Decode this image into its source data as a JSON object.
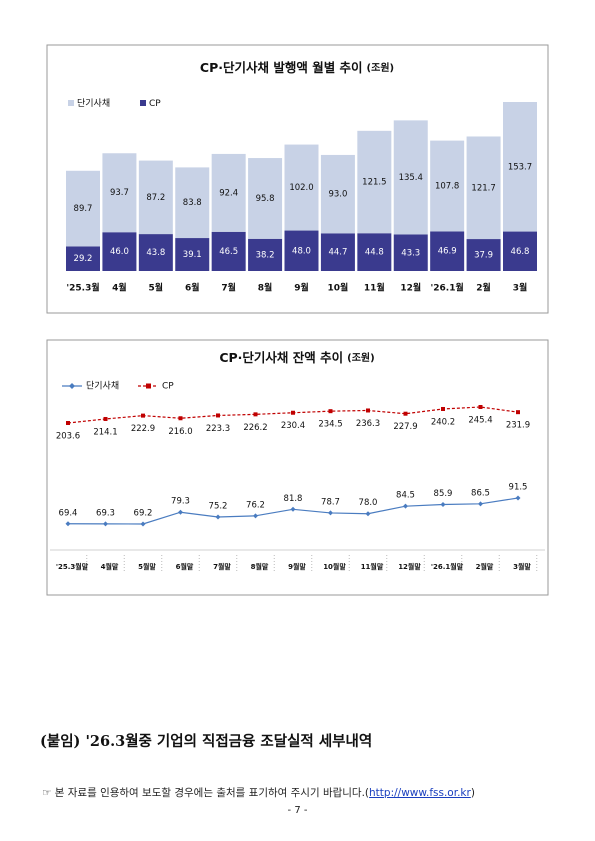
{
  "chart_data": [
    {
      "type": "bar",
      "stacked": true,
      "title": "CP·단기사채 발행액 월별 추이",
      "unit": "(조원)",
      "categories": [
        "'25.3월",
        "4월",
        "5월",
        "6월",
        "7월",
        "8월",
        "9월",
        "10월",
        "11월",
        "12월",
        "'26.1월",
        "2월",
        "3월"
      ],
      "series": [
        {
          "name": "단기사채",
          "color": "#c8d2e6",
          "values": [
            89.7,
            93.7,
            87.2,
            83.8,
            92.4,
            95.8,
            102.0,
            93.0,
            121.5,
            135.4,
            107.8,
            121.7,
            153.7
          ],
          "value_labels": [
            "89.7",
            "93.7",
            "87.2",
            "83.8",
            "92.4",
            "95.8",
            "102.0",
            "93.0",
            "121.5",
            "135.4",
            "107.8",
            "121.7",
            "153.7"
          ]
        },
        {
          "name": "CP",
          "color": "#3a3a8e",
          "values": [
            29.2,
            46.0,
            43.8,
            39.1,
            46.5,
            38.2,
            48.0,
            44.7,
            44.8,
            43.3,
            46.9,
            37.9,
            46.8
          ],
          "value_labels": [
            "29.2",
            "46.0",
            "43.8",
            "39.1",
            "46.5",
            "38.2",
            "48.0",
            "44.7",
            "44.8",
            "43.3",
            "46.9",
            "37.9",
            "46.8"
          ]
        }
      ]
    },
    {
      "type": "line",
      "title": "CP·단기사채 잔액 추이",
      "unit": "(조원)",
      "categories": [
        "'25.3월말",
        "4월말",
        "5월말",
        "6월말",
        "7월말",
        "8월말",
        "9월말",
        "10월말",
        "11월말",
        "12월말",
        "'26.1월말",
        "2월말",
        "3월말"
      ],
      "series": [
        {
          "name": "단기사채",
          "color": "#4a7cc0",
          "values": [
            69.4,
            69.3,
            69.2,
            79.3,
            75.2,
            76.2,
            81.8,
            78.7,
            78.0,
            84.5,
            85.9,
            86.5,
            91.5
          ],
          "value_labels": [
            "69.4",
            "69.3",
            "69.2",
            "79.3",
            "75.2",
            "76.2",
            "81.8",
            "78.7",
            "78.0",
            "84.5",
            "85.9",
            "86.5",
            "91.5"
          ]
        },
        {
          "name": "CP",
          "color": "#c00000",
          "values": [
            203.6,
            214.1,
            222.9,
            216.0,
            223.3,
            226.2,
            230.4,
            234.5,
            236.3,
            227.9,
            240.2,
            245.4,
            231.9
          ],
          "value_labels": [
            "203.6",
            "214.1",
            "222.9",
            "216.0",
            "223.3",
            "226.2",
            "230.4",
            "234.5",
            "236.3",
            "227.9",
            "240.2",
            "245.4",
            "231.9"
          ]
        }
      ]
    }
  ],
  "appendix": "(붙임) '26.3월중 기업의 직접금융 조달실적 세부내역",
  "note": {
    "text": "☞ 본 자료를 인용하여 보도할 경우에는 출처를 표기하여 주시기 바랍니다.(",
    "link": "http://www.fss.or.kr",
    "close": ")"
  },
  "page_number": "- 7 -"
}
